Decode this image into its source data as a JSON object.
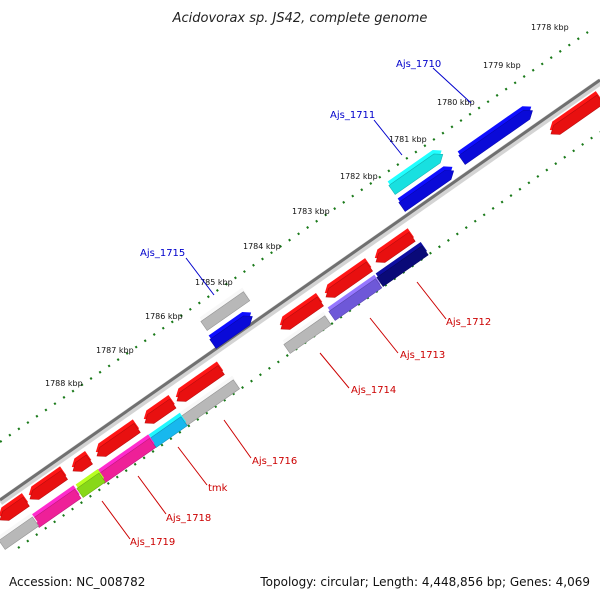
{
  "title": "Acidovorax sp. JS42, complete genome",
  "footer": {
    "accession": "Accession: NC_008782",
    "summary": "Topology: circular; Length: 4,448,856 bp; Genes: 4,069"
  },
  "colors": {
    "forward_label": "#0000cc",
    "reverse_label": "#cc0000",
    "backbone": "#7a7a7a",
    "ticks": "#1a7a1a"
  },
  "kbp_ticks": [
    "1778 kbp",
    "1779 kbp",
    "1780 kbp",
    "1781 kbp",
    "1782 kbp",
    "1783 kbp",
    "1784 kbp",
    "1785 kbp",
    "1786 kbp",
    "1787 kbp",
    "1788 kbp"
  ],
  "forward_labels": [
    "Ajs_1710",
    "Ajs_1711",
    "Ajs_1715"
  ],
  "reverse_labels": [
    "Ajs_1712",
    "Ajs_1713",
    "Ajs_1714",
    "Ajs_1716",
    "tmk",
    "Ajs_1718",
    "Ajs_1719"
  ]
}
